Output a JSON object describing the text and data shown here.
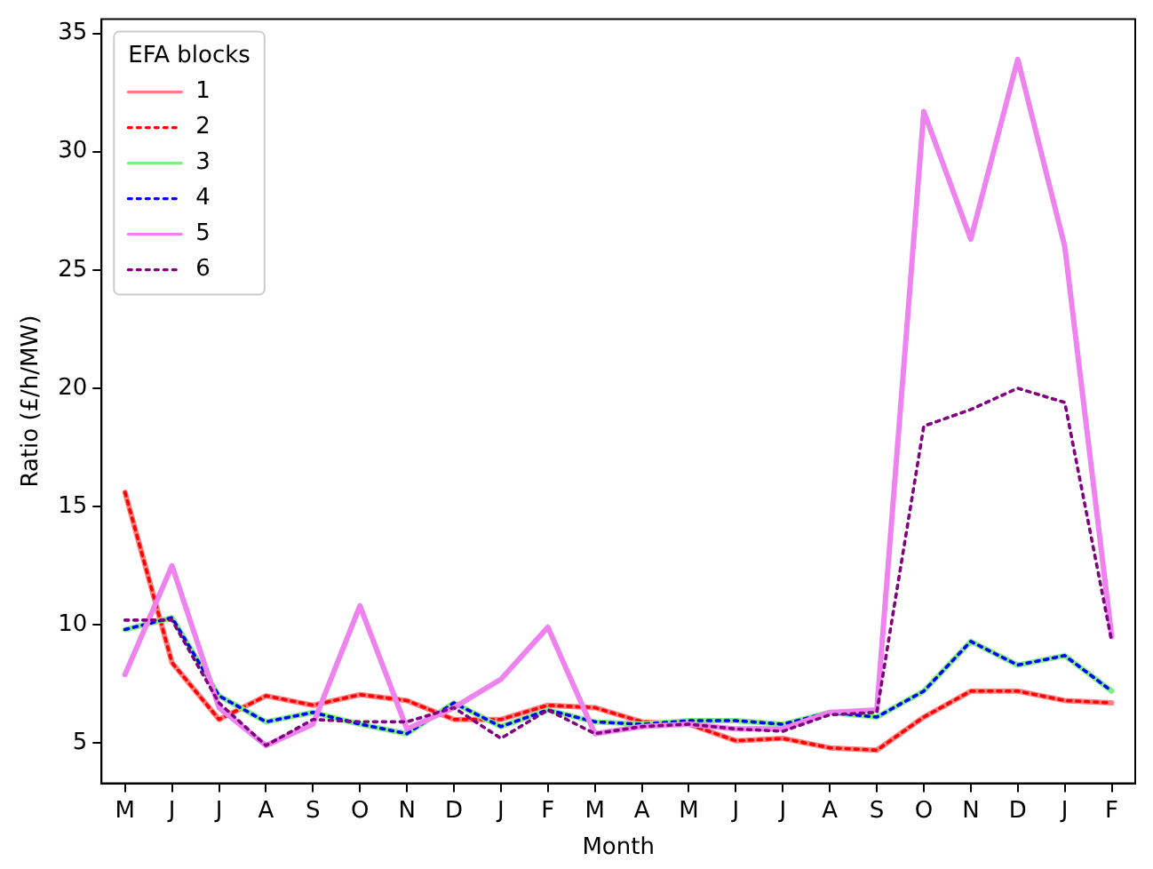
{
  "chart_data": {
    "type": "line",
    "xlabel": "Month",
    "ylabel": "Ratio (£/h/MW)",
    "legend_title": "EFA blocks",
    "legend": "top left",
    "grid": false,
    "marker": "none",
    "categories": [
      "M",
      "J",
      "J",
      "A",
      "S",
      "O",
      "N",
      "D",
      "J",
      "F",
      "M",
      "A",
      "M",
      "J",
      "J",
      "A",
      "S",
      "O",
      "N",
      "D",
      "J",
      "F"
    ],
    "ylim": [
      3.3,
      35.6
    ],
    "yticks": [
      5,
      10,
      15,
      20,
      25,
      30,
      35
    ],
    "series": [
      {
        "name": "1",
        "color": "#ff8080",
        "line_style": "solid",
        "values": [
          15.6,
          8.4,
          6.0,
          7.0,
          6.6,
          7.05,
          6.8,
          6.0,
          6.0,
          6.6,
          6.5,
          5.9,
          5.8,
          5.1,
          5.2,
          4.8,
          4.7,
          6.1,
          7.2,
          7.2,
          6.8,
          6.7
        ]
      },
      {
        "name": "2",
        "color": "#ff0000",
        "line_style": "dotted",
        "values": [
          15.6,
          8.4,
          6.0,
          7.0,
          6.6,
          7.05,
          6.8,
          6.0,
          6.0,
          6.6,
          6.5,
          5.9,
          5.8,
          5.1,
          5.2,
          4.8,
          4.7,
          6.1,
          7.2,
          7.2,
          6.8,
          6.7
        ]
      },
      {
        "name": "3",
        "color": "#80ee80",
        "line_style": "solid",
        "values": [
          9.8,
          10.3,
          7.0,
          5.9,
          6.3,
          5.8,
          5.4,
          6.7,
          5.7,
          6.4,
          5.9,
          5.8,
          5.95,
          5.95,
          5.8,
          6.3,
          6.1,
          7.2,
          9.3,
          8.3,
          8.7,
          7.2
        ]
      },
      {
        "name": "4",
        "color": "#0000ff",
        "line_style": "dotted",
        "values": [
          9.8,
          10.3,
          7.0,
          5.9,
          6.3,
          5.8,
          5.4,
          6.7,
          5.7,
          6.4,
          5.9,
          5.8,
          5.95,
          5.95,
          5.8,
          6.3,
          6.1,
          7.2,
          9.3,
          8.3,
          8.7,
          7.2
        ]
      },
      {
        "name": "5",
        "color": "#ee82ee",
        "line_style": "solid",
        "values": [
          7.9,
          12.5,
          6.5,
          4.9,
          5.8,
          10.8,
          5.6,
          6.5,
          7.7,
          9.9,
          5.4,
          5.7,
          5.8,
          5.6,
          5.6,
          6.3,
          6.4,
          31.7,
          26.3,
          33.9,
          26.0,
          9.5
        ]
      },
      {
        "name": "6",
        "color": "#800080",
        "line_style": "dotted",
        "values": [
          10.2,
          10.2,
          6.7,
          4.9,
          6.0,
          5.9,
          5.9,
          6.5,
          5.2,
          6.4,
          5.4,
          5.7,
          5.8,
          5.6,
          5.5,
          6.2,
          6.3,
          18.4,
          19.1,
          20.0,
          19.4,
          9.3
        ]
      }
    ]
  }
}
